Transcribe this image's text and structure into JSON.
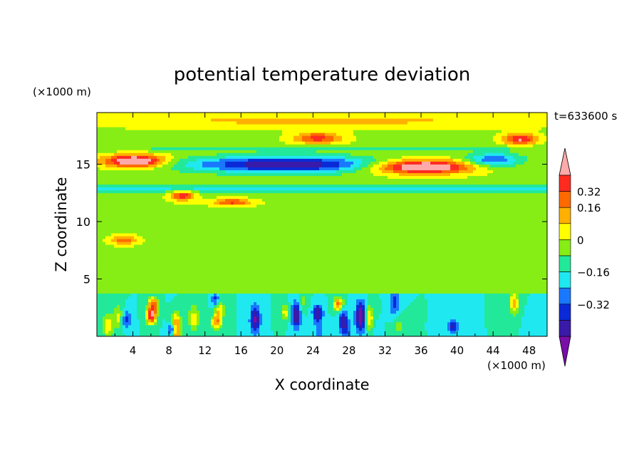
{
  "chart_data": {
    "type": "heatmap",
    "title": "potential temperature deviation",
    "time_label": "t=633600 s",
    "xlabel": "X coordinate",
    "ylabel": "Z coordinate",
    "x_unit": "(×1000 m)",
    "y_unit": "(×1000 m)",
    "xlim": [
      0,
      50
    ],
    "ylim": [
      0,
      19.5
    ],
    "x_ticks": [
      4,
      8,
      12,
      16,
      20,
      24,
      28,
      32,
      36,
      40,
      44,
      48
    ],
    "y_ticks": [
      5,
      10,
      15
    ],
    "colorbar": {
      "levels": [
        -0.48,
        -0.4,
        -0.32,
        -0.24,
        -0.16,
        -0.08,
        0,
        0.08,
        0.16,
        0.24,
        0.32,
        0.4
      ],
      "tick_labels": [
        "0.32",
        "0.16",
        "0",
        "−0.16",
        "−0.32"
      ],
      "tick_values": [
        0.32,
        0.16,
        0,
        -0.16,
        -0.32
      ],
      "colors": [
        "#7a0ea8",
        "#3a1aa8",
        "#0a2ad8",
        "#1a78ff",
        "#20e8f0",
        "#22e89a",
        "#86ee14",
        "#ffff00",
        "#ffb000",
        "#ff6a00",
        "#ff2a20",
        "#ffaaaa"
      ]
    },
    "fields": [
      {
        "kind": "band",
        "name": "upper-inversion-core",
        "x": [
          8,
          34
        ],
        "z": [
          14.0,
          16.2
        ],
        "level": -0.46
      },
      {
        "kind": "band",
        "name": "upper-inversion-edge",
        "x": [
          0,
          50
        ],
        "z": [
          13.2,
          14.2
        ],
        "level": -0.34
      },
      {
        "kind": "blob",
        "name": "warm-tongue-left",
        "x": [
          0.5,
          8
        ],
        "z": [
          14.6,
          16.4
        ],
        "level": 0.42
      },
      {
        "kind": "blob",
        "name": "warm-tongue-right",
        "x": [
          28,
          43
        ],
        "z": [
          13.8,
          16.2
        ],
        "level": 0.42
      },
      {
        "kind": "blob",
        "name": "warm-cap-24",
        "x": [
          21,
          28
        ],
        "z": [
          16.5,
          17.8
        ],
        "level": 0.28
      },
      {
        "kind": "blob",
        "name": "warm-cap-47",
        "x": [
          44.5,
          49.5
        ],
        "z": [
          16.3,
          17.8
        ],
        "level": 0.34
      },
      {
        "kind": "band",
        "name": "boundary-layer",
        "x": [
          0,
          50
        ],
        "z": [
          0.2,
          3.4
        ],
        "level": -0.3
      },
      {
        "kind": "cells",
        "name": "boundary-layer-plumes",
        "x": [
          0,
          50
        ],
        "z": [
          0.3,
          3.6
        ],
        "level": 0.36
      }
    ]
  }
}
